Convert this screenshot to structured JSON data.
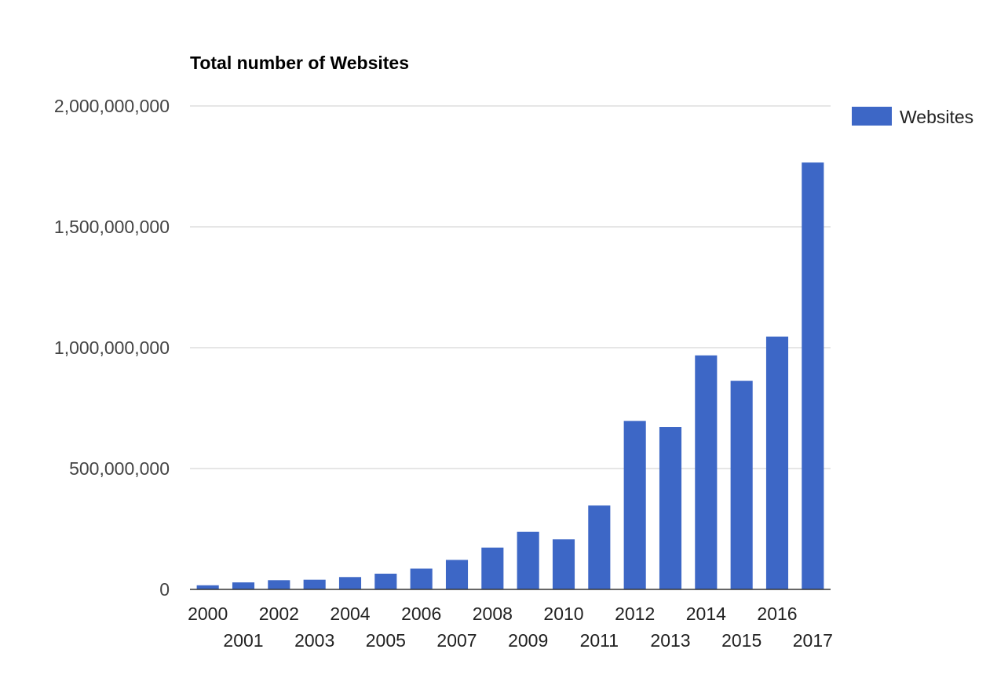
{
  "chart_data": {
    "type": "bar",
    "title": "Total number of Websites",
    "xlabel": "",
    "ylabel": "",
    "categories": [
      "2000",
      "2001",
      "2002",
      "2003",
      "2004",
      "2005",
      "2006",
      "2007",
      "2008",
      "2009",
      "2010",
      "2011",
      "2012",
      "2013",
      "2014",
      "2015",
      "2016",
      "2017"
    ],
    "series": [
      {
        "name": "Websites",
        "color": "#3d67c6",
        "values": [
          17000000,
          29000000,
          38000000,
          40000000,
          51000000,
          65000000,
          86000000,
          122000000,
          173000000,
          238000000,
          207000000,
          347000000,
          697000000,
          672000000,
          968000000,
          863000000,
          1046000000,
          1766000000
        ]
      }
    ],
    "ylim": [
      0,
      2000000000
    ],
    "yticks": [
      0,
      500000000,
      1000000000,
      1500000000,
      2000000000
    ],
    "ytick_labels": [
      "0",
      "500,000,000",
      "1,000,000,000",
      "1,500,000,000",
      "2,000,000,000"
    ],
    "grid": true,
    "legend_position": "right"
  }
}
